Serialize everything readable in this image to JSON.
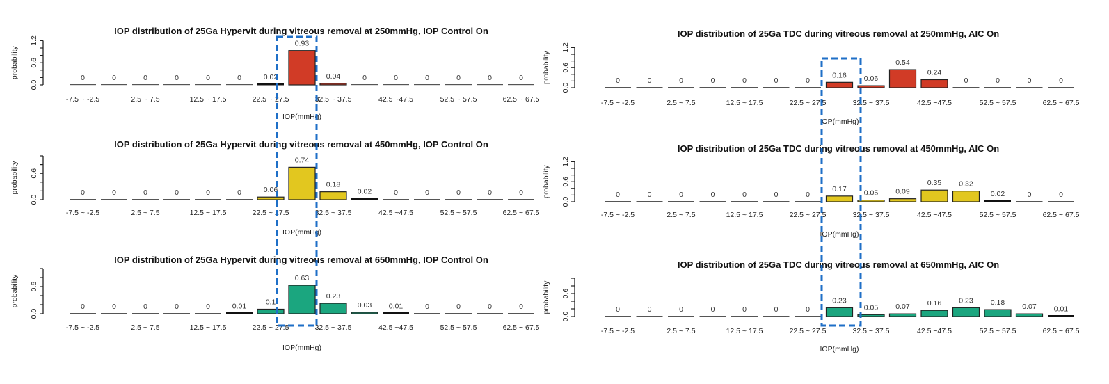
{
  "chart_data": [
    {
      "type": "bar",
      "title": "IOP distribution of 25Ga Hypervit during vitreous removal at 250mmHg, IOP Control On",
      "xlabel": "IOP(mmHg)",
      "ylabel": "probability",
      "ylim": [
        0,
        1.2
      ],
      "yticks": [
        "0.0",
        "0.6",
        "1.2"
      ],
      "xtick_labels": [
        "-7.5 ~ -2.5",
        "2.5 ~ 7.5",
        "12.5 ~ 17.5",
        "22.5 ~ 27.5",
        "32.5 ~ 37.5",
        "42.5 ~47.5",
        "52.5 ~ 57.5",
        "62.5 ~ 67.5"
      ],
      "values": [
        0,
        0,
        0,
        0,
        0,
        0,
        0.02,
        0.93,
        0.04,
        0,
        0,
        0,
        0,
        0,
        0
      ],
      "color": "#d13b26"
    },
    {
      "type": "bar",
      "title": "IOP distribution of 25Ga Hypervit during vitreous removal at 450mmHg, IOP Control On",
      "xlabel": "IOP(mmHg)",
      "ylabel": "probability",
      "ylim": [
        0,
        1.0
      ],
      "yticks": [
        "0.0",
        "0.6"
      ],
      "xtick_labels": [
        "-7.5 ~ -2.5",
        "2.5 ~ 7.5",
        "12.5 ~ 17.5",
        "22.5 ~ 27.5",
        "32.5 ~ 37.5",
        "42.5 ~47.5",
        "52.5 ~ 57.5",
        "62.5 ~ 67.5"
      ],
      "values": [
        0,
        0,
        0,
        0,
        0,
        0,
        0.06,
        0.74,
        0.18,
        0.02,
        0,
        0,
        0,
        0,
        0
      ],
      "color": "#e2c71f"
    },
    {
      "type": "bar",
      "title": "IOP distribution of 25Ga Hypervit during vitreous removal at 650mmHg, IOP Control On",
      "xlabel": "IOP(mmHg)",
      "ylabel": "probability",
      "ylim": [
        0,
        1.0
      ],
      "yticks": [
        "0.0",
        "0.6"
      ],
      "xtick_labels": [
        "-7.5 ~ -2.5",
        "2.5 ~ 7.5",
        "12.5 ~ 17.5",
        "22.5 ~ 27.5",
        "32.5 ~ 37.5",
        "42.5 ~47.5",
        "52.5 ~ 57.5",
        "62.5 ~ 67.5"
      ],
      "values": [
        0,
        0,
        0,
        0,
        0,
        0.01,
        0.1,
        0.63,
        0.23,
        0.03,
        0.01,
        0,
        0,
        0,
        0
      ],
      "color": "#1ba67f"
    },
    {
      "type": "bar",
      "title": "IOP distribution of 25Ga TDC during vitreous removal at 250mmHg, AIC On",
      "xlabel": "IOP(mmHg)",
      "ylabel": "probability",
      "ylim": [
        0,
        1.2
      ],
      "yticks": [
        "0.0",
        "0.6",
        "1.2"
      ],
      "xtick_labels": [
        "-7.5 ~ -2.5",
        "2.5 ~ 7.5",
        "12.5 ~ 17.5",
        "22.5 ~ 27.5",
        "32.5 ~ 37.5",
        "42.5 ~47.5",
        "52.5 ~ 57.5",
        "62.5 ~ 67.5"
      ],
      "values": [
        0,
        0,
        0,
        0,
        0,
        0,
        0,
        0.16,
        0.06,
        0.54,
        0.24,
        0,
        0,
        0,
        0
      ],
      "color": "#d13b26"
    },
    {
      "type": "bar",
      "title": "IOP distribution of 25Ga TDC during vitreous removal at 450mmHg, AIC On",
      "xlabel": "IOP(mmHg)",
      "ylabel": "probability",
      "ylim": [
        0,
        1.2
      ],
      "yticks": [
        "0.0",
        "0.6",
        "1.2"
      ],
      "xtick_labels": [
        "-7.5 ~ -2.5",
        "2.5 ~ 7.5",
        "12.5 ~ 17.5",
        "22.5 ~ 27.5",
        "32.5 ~ 37.5",
        "42.5 ~47.5",
        "52.5 ~ 57.5",
        "62.5 ~ 67.5"
      ],
      "values": [
        0,
        0,
        0,
        0,
        0,
        0,
        0,
        0.17,
        0.05,
        0.09,
        0.35,
        0.32,
        0.02,
        0,
        0
      ],
      "color": "#e2c71f"
    },
    {
      "type": "bar",
      "title": "IOP distribution of 25Ga TDC during vitreous removal at 650mmHg, AIC On",
      "xlabel": "IOP(mmHg)",
      "ylabel": "probability",
      "ylim": [
        0,
        1.0
      ],
      "yticks": [
        "0.0",
        "0.6"
      ],
      "xtick_labels": [
        "-7.5 ~ -2.5",
        "2.5 ~ 7.5",
        "12.5 ~ 17.5",
        "22.5 ~ 27.5",
        "32.5 ~ 37.5",
        "42.5 ~47.5",
        "52.5 ~ 57.5",
        "62.5 ~ 67.5"
      ],
      "values": [
        0,
        0,
        0,
        0,
        0,
        0,
        0,
        0.23,
        0.05,
        0.07,
        0.16,
        0.23,
        0.18,
        0.07,
        0.01
      ],
      "color": "#1ba67f"
    }
  ],
  "highlight_color": "#1f6fc7"
}
